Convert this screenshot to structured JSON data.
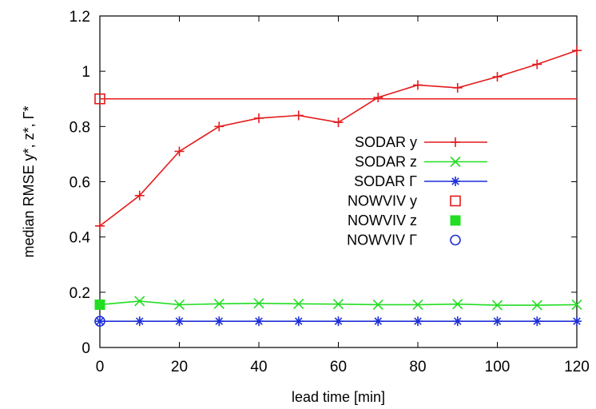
{
  "chart_data": {
    "type": "line",
    "title": "",
    "xlabel": "lead time [min]",
    "ylabel": "median RMSE  y*, z*, Γ*",
    "xlim": [
      0,
      120
    ],
    "ylim": [
      0,
      1.2
    ],
    "xticks": [
      "0",
      "20",
      "40",
      "60",
      "80",
      "100",
      "120"
    ],
    "yticks": [
      "0",
      "0.2",
      "0.4",
      "0.6",
      "0.8",
      "1",
      "1.2"
    ],
    "grid": false,
    "legend_position": "center-right",
    "series": [
      {
        "name": "SODAR y",
        "color": "#e41a1c",
        "marker": "plus",
        "x": [
          0,
          10,
          20,
          30,
          40,
          50,
          60,
          70,
          80,
          90,
          100,
          110,
          120
        ],
        "y": [
          0.44,
          0.55,
          0.71,
          0.8,
          0.83,
          0.84,
          0.815,
          0.905,
          0.95,
          0.94,
          0.98,
          1.025,
          1.075
        ]
      },
      {
        "name": "SODAR z",
        "color": "#22dd22",
        "marker": "x",
        "x": [
          0,
          10,
          20,
          30,
          40,
          50,
          60,
          70,
          80,
          90,
          100,
          110,
          120
        ],
        "y": [
          0.155,
          0.168,
          0.155,
          0.158,
          0.16,
          0.158,
          0.157,
          0.155,
          0.155,
          0.157,
          0.153,
          0.153,
          0.155
        ]
      },
      {
        "name": "SODAR Γ",
        "color": "#1f2fd8",
        "marker": "asterisk",
        "x": [
          0,
          10,
          20,
          30,
          40,
          50,
          60,
          70,
          80,
          90,
          100,
          110,
          120
        ],
        "y": [
          0.095,
          0.095,
          0.095,
          0.095,
          0.095,
          0.095,
          0.095,
          0.095,
          0.095,
          0.095,
          0.095,
          0.095,
          0.095
        ]
      },
      {
        "name": "NOWVIV y",
        "color": "#e41a1c",
        "marker": "open-square",
        "x": [
          0,
          120
        ],
        "y": [
          0.9,
          0.9
        ]
      },
      {
        "name": "NOWVIV z",
        "color": "#22dd22",
        "marker": "filled-square",
        "x": [
          0,
          120
        ],
        "y": [
          0.155,
          0.155
        ]
      },
      {
        "name": "NOWVIV Γ",
        "color": "#1f2fd8",
        "marker": "open-circle",
        "x": [
          0,
          120
        ],
        "y": [
          0.095,
          0.095
        ]
      }
    ]
  }
}
